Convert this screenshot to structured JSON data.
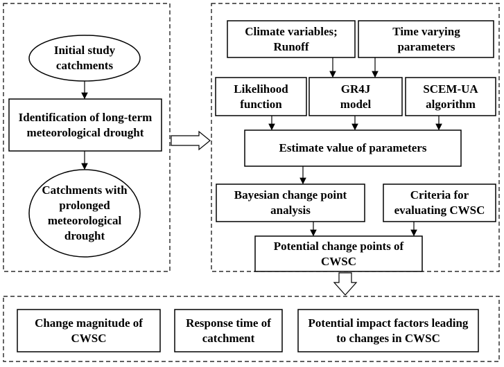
{
  "left_panel": {
    "initial": "Initial study catchments",
    "identification": "Identification of long-term meteorological drought",
    "catchments": "Catchments with prolonged meteorological drought"
  },
  "right_panel": {
    "climate": "Climate variables; Runoff",
    "time_varying": "Time varying parameters",
    "likelihood": "Likelihood function",
    "gr4j": "GR4J model",
    "scem": "SCEM-UA algorithm",
    "estimate": "Estimate value of parameters",
    "bayesian": "Bayesian change point analysis",
    "criteria": "Criteria for evaluating CWSC",
    "change_points": "Potential change points of CWSC"
  },
  "bottom_panel": {
    "magnitude": "Change magnitude of CWSC",
    "response": "Response time of catchment",
    "impact": "Potential impact factors leading to changes in CWSC"
  }
}
